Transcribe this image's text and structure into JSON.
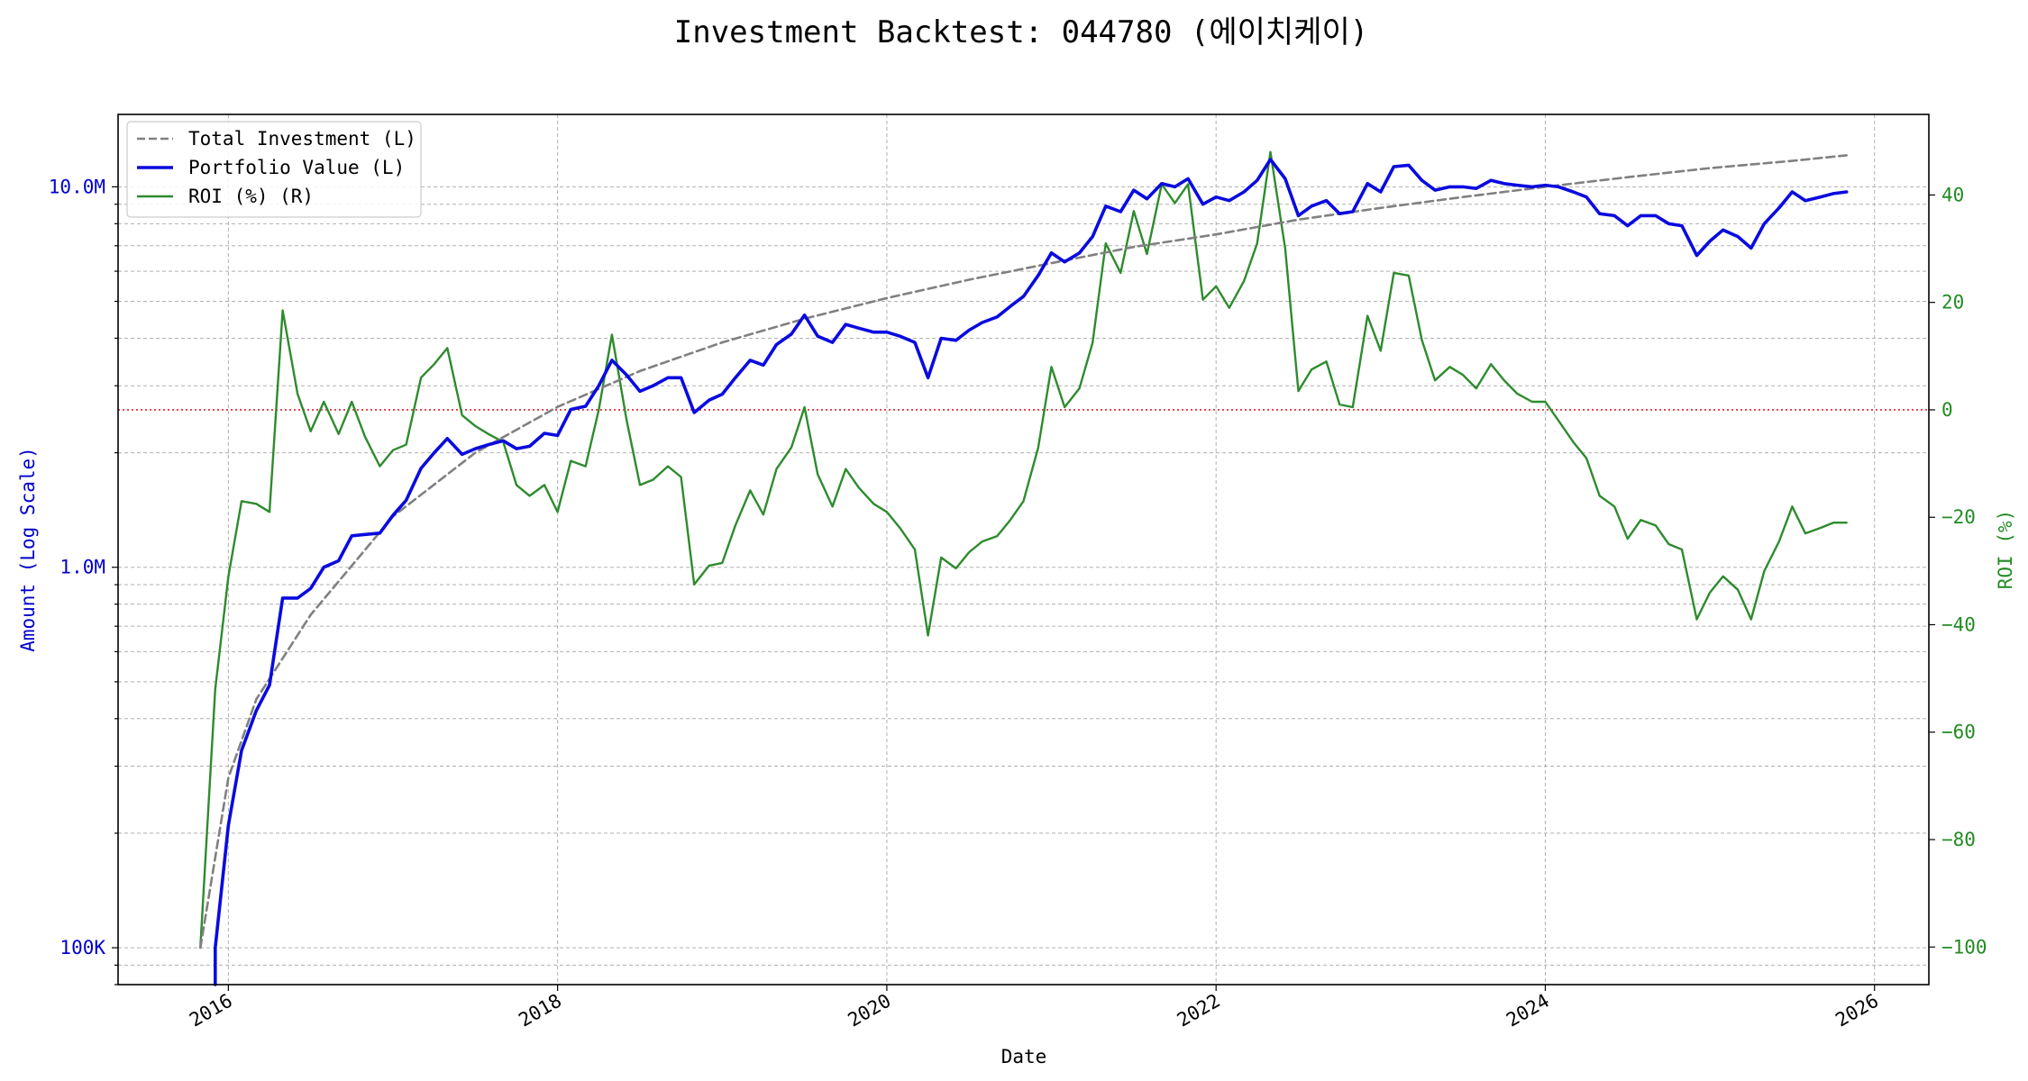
{
  "chart_data": {
    "type": "line",
    "title": "Investment Backtest: 044780 (에이치케이)",
    "xlabel": "Date",
    "ylabel_left": "Amount (Log Scale)",
    "ylabel_right": "ROI (%)",
    "left_scale": "log",
    "left_ylim": [
      80000,
      15500000
    ],
    "right_ylim": [
      -107,
      55
    ],
    "xlim": [
      2015.33,
      2026.33
    ],
    "grid": true,
    "legend_location": "top-left",
    "x_ticks": [
      {
        "value": 2016,
        "label": "2016"
      },
      {
        "value": 2018,
        "label": "2018"
      },
      {
        "value": 2020,
        "label": "2020"
      },
      {
        "value": 2022,
        "label": "2022"
      },
      {
        "value": 2024,
        "label": "2024"
      },
      {
        "value": 2026,
        "label": "2026"
      }
    ],
    "left_ticks": [
      {
        "value": 100000,
        "label": "100K"
      },
      {
        "value": 1000000,
        "label": "1.0M"
      },
      {
        "value": 10000000,
        "label": "10.0M"
      }
    ],
    "right_ticks": [
      {
        "value": -100,
        "label": "−100"
      },
      {
        "value": -80,
        "label": "−80"
      },
      {
        "value": -60,
        "label": "−60"
      },
      {
        "value": -40,
        "label": "−40"
      },
      {
        "value": -20,
        "label": "−20"
      },
      {
        "value": 0,
        "label": "0"
      },
      {
        "value": 20,
        "label": "20"
      },
      {
        "value": 40,
        "label": "40"
      }
    ],
    "reference_line": {
      "axis": "right",
      "value": 0,
      "color": "#e0202c"
    },
    "colors": {
      "total_investment": "#808080",
      "portfolio_value": "#0a0ae0",
      "roi": "#2e8b2e",
      "left_axis": "#0000cc",
      "right_axis": "#228b22"
    },
    "series": [
      {
        "name": "Total Investment (L)",
        "axis": "left",
        "style": "dashed",
        "x": [
          2015.83,
          2016.0,
          2016.17,
          2016.5,
          2017.0,
          2017.5,
          2018.0,
          2018.5,
          2019.0,
          2019.5,
          2020.0,
          2020.5,
          2021.0,
          2021.5,
          2022.0,
          2022.5,
          2023.0,
          2023.5,
          2024.0,
          2024.5,
          2025.0,
          2025.5,
          2025.83
        ],
        "values": [
          100000,
          280000,
          450000,
          750000,
          1360000,
          2000000,
          2640000,
          3280000,
          3900000,
          4500000,
          5100000,
          5700000,
          6300000,
          6950000,
          7500000,
          8200000,
          8800000,
          9400000,
          10000000,
          10600000,
          11200000,
          11700000,
          12100000
        ]
      },
      {
        "name": "Portfolio Value (L)",
        "axis": "left",
        "style": "solid",
        "x": [
          2015.92,
          2015.92,
          2016.0,
          2016.08,
          2016.17,
          2016.25,
          2016.33,
          2016.42,
          2016.5,
          2016.58,
          2016.67,
          2016.75,
          2016.83,
          2016.92,
          2017.0,
          2017.08,
          2017.17,
          2017.25,
          2017.33,
          2017.42,
          2017.5,
          2017.58,
          2017.67,
          2017.75,
          2017.83,
          2017.92,
          2018.0,
          2018.08,
          2018.17,
          2018.25,
          2018.33,
          2018.42,
          2018.5,
          2018.58,
          2018.67,
          2018.75,
          2018.83,
          2018.92,
          2019.0,
          2019.08,
          2019.17,
          2019.25,
          2019.33,
          2019.42,
          2019.5,
          2019.58,
          2019.67,
          2019.75,
          2019.83,
          2019.92,
          2020.0,
          2020.08,
          2020.17,
          2020.25,
          2020.33,
          2020.42,
          2020.5,
          2020.58,
          2020.67,
          2020.75,
          2020.83,
          2020.92,
          2021.0,
          2021.08,
          2021.17,
          2021.25,
          2021.33,
          2021.42,
          2021.5,
          2021.58,
          2021.67,
          2021.75,
          2021.83,
          2021.92,
          2022.0,
          2022.08,
          2022.17,
          2022.25,
          2022.33,
          2022.42,
          2022.5,
          2022.58,
          2022.67,
          2022.75,
          2022.83,
          2022.92,
          2023.0,
          2023.08,
          2023.17,
          2023.25,
          2023.33,
          2023.42,
          2023.5,
          2023.58,
          2023.67,
          2023.75,
          2023.83,
          2023.92,
          2024.0,
          2024.08,
          2024.17,
          2024.25,
          2024.33,
          2024.42,
          2024.5,
          2024.58,
          2024.67,
          2024.75,
          2024.83,
          2024.92,
          2025.0,
          2025.08,
          2025.17,
          2025.25,
          2025.33,
          2025.42,
          2025.5,
          2025.58,
          2025.67,
          2025.75,
          2025.83
        ],
        "values": [
          78000,
          100000,
          210000,
          330000,
          420000,
          490000,
          830000,
          830000,
          880000,
          1000000,
          1040000,
          1210000,
          1220000,
          1230000,
          1370000,
          1500000,
          1820000,
          2000000,
          2180000,
          1980000,
          2050000,
          2100000,
          2150000,
          2050000,
          2080000,
          2250000,
          2220000,
          2600000,
          2650000,
          3000000,
          3500000,
          3200000,
          2900000,
          3000000,
          3150000,
          3150000,
          2550000,
          2750000,
          2850000,
          3150000,
          3500000,
          3400000,
          3850000,
          4100000,
          4600000,
          4050000,
          3900000,
          4350000,
          4250000,
          4150000,
          4150000,
          4050000,
          3900000,
          3150000,
          4000000,
          3950000,
          4200000,
          4400000,
          4550000,
          4850000,
          5150000,
          5850000,
          6700000,
          6350000,
          6700000,
          7400000,
          8900000,
          8600000,
          9800000,
          9300000,
          10200000,
          10000000,
          10500000,
          9000000,
          9400000,
          9200000,
          9700000,
          10400000,
          11800000,
          10500000,
          8400000,
          8900000,
          9200000,
          8500000,
          8600000,
          10200000,
          9700000,
          11300000,
          11400000,
          10400000,
          9800000,
          10000000,
          10000000,
          9900000,
          10400000,
          10200000,
          10100000,
          10000000,
          10100000,
          10000000,
          9700000,
          9400000,
          8500000,
          8400000,
          7900000,
          8400000,
          8400000,
          8000000,
          7900000,
          6600000,
          7200000,
          7700000,
          7400000,
          6900000,
          8000000,
          8800000,
          9700000,
          9200000,
          9400000,
          9600000,
          9700000
        ]
      },
      {
        "name": "ROI (%) (R)",
        "axis": "right",
        "style": "solid",
        "x": [
          2015.83,
          2015.92,
          2016.0,
          2016.08,
          2016.17,
          2016.25,
          2016.33,
          2016.42,
          2016.5,
          2016.58,
          2016.67,
          2016.75,
          2016.83,
          2016.92,
          2017.0,
          2017.08,
          2017.17,
          2017.25,
          2017.33,
          2017.42,
          2017.5,
          2017.58,
          2017.67,
          2017.75,
          2017.83,
          2017.92,
          2018.0,
          2018.08,
          2018.17,
          2018.25,
          2018.33,
          2018.42,
          2018.5,
          2018.58,
          2018.67,
          2018.75,
          2018.83,
          2018.92,
          2019.0,
          2019.08,
          2019.17,
          2019.25,
          2019.33,
          2019.42,
          2019.5,
          2019.58,
          2019.67,
          2019.75,
          2019.83,
          2019.92,
          2020.0,
          2020.08,
          2020.17,
          2020.25,
          2020.33,
          2020.42,
          2020.5,
          2020.58,
          2020.67,
          2020.75,
          2020.83,
          2020.92,
          2021.0,
          2021.08,
          2021.17,
          2021.25,
          2021.33,
          2021.42,
          2021.5,
          2021.58,
          2021.67,
          2021.75,
          2021.83,
          2021.92,
          2022.0,
          2022.08,
          2022.17,
          2022.25,
          2022.33,
          2022.42,
          2022.5,
          2022.58,
          2022.67,
          2022.75,
          2022.83,
          2022.92,
          2023.0,
          2023.08,
          2023.17,
          2023.25,
          2023.33,
          2023.42,
          2023.5,
          2023.58,
          2023.67,
          2023.75,
          2023.83,
          2023.92,
          2024.0,
          2024.08,
          2024.17,
          2024.25,
          2024.33,
          2024.42,
          2024.5,
          2024.58,
          2024.67,
          2024.75,
          2024.83,
          2024.92,
          2025.0,
          2025.08,
          2025.17,
          2025.25,
          2025.33,
          2025.42,
          2025.5,
          2025.58,
          2025.67,
          2025.75,
          2025.83
        ],
        "values": [
          -100,
          -52,
          -31,
          -17,
          -17.5,
          -19,
          18.5,
          3,
          -4,
          1.5,
          -4.5,
          1.5,
          -5,
          -10.5,
          -7.5,
          -6.5,
          6,
          8.5,
          11.5,
          -1,
          -3,
          -4.5,
          -6,
          -14,
          -16,
          -14,
          -19,
          -9.5,
          -10.5,
          0,
          14,
          -2,
          -14,
          -13,
          -10.5,
          -12.5,
          -32.5,
          -29,
          -28.5,
          -21.5,
          -15,
          -19.5,
          -11,
          -7,
          0.5,
          -12,
          -18,
          -11,
          -14.5,
          -17.5,
          -19,
          -22,
          -26,
          -42,
          -27.5,
          -29.5,
          -26.5,
          -24.5,
          -23.5,
          -20.5,
          -17,
          -7,
          8,
          0.5,
          4,
          12.5,
          31,
          25.5,
          37,
          29,
          42,
          38.5,
          42,
          20.5,
          23,
          19,
          24,
          31,
          48,
          30,
          3.5,
          7.5,
          9,
          1,
          0.5,
          17.5,
          11,
          25.5,
          25,
          13,
          5.5,
          8,
          6.5,
          4,
          8.5,
          5.5,
          3,
          1.5,
          1.5,
          -2,
          -6,
          -9,
          -16,
          -18,
          -24,
          -20.5,
          -21.5,
          -25,
          -26,
          -39,
          -34,
          -31,
          -33.5,
          -39,
          -30,
          -24.5,
          -18,
          -23,
          -22,
          -21,
          -21
        ]
      }
    ]
  }
}
